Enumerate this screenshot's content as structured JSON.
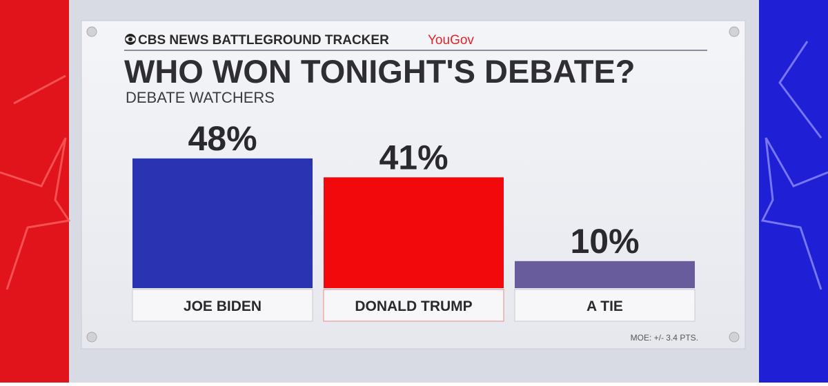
{
  "chart_data": {
    "type": "bar",
    "header": "CBS NEWS BATTLEGROUND TRACKER",
    "partner": "YouGov",
    "title": "WHO WON TONIGHT'S DEBATE?",
    "subtitle": "DEBATE WATCHERS",
    "categories": [
      "JOE BIDEN",
      "DONALD TRUMP",
      "A TIE"
    ],
    "values": [
      48,
      41,
      10
    ],
    "value_labels": [
      "48%",
      "41%",
      "10%"
    ],
    "colors": [
      "#2a33b2",
      "#f2090b",
      "#685c9c"
    ],
    "note": "MOE: +/- 3.4 PTS."
  }
}
